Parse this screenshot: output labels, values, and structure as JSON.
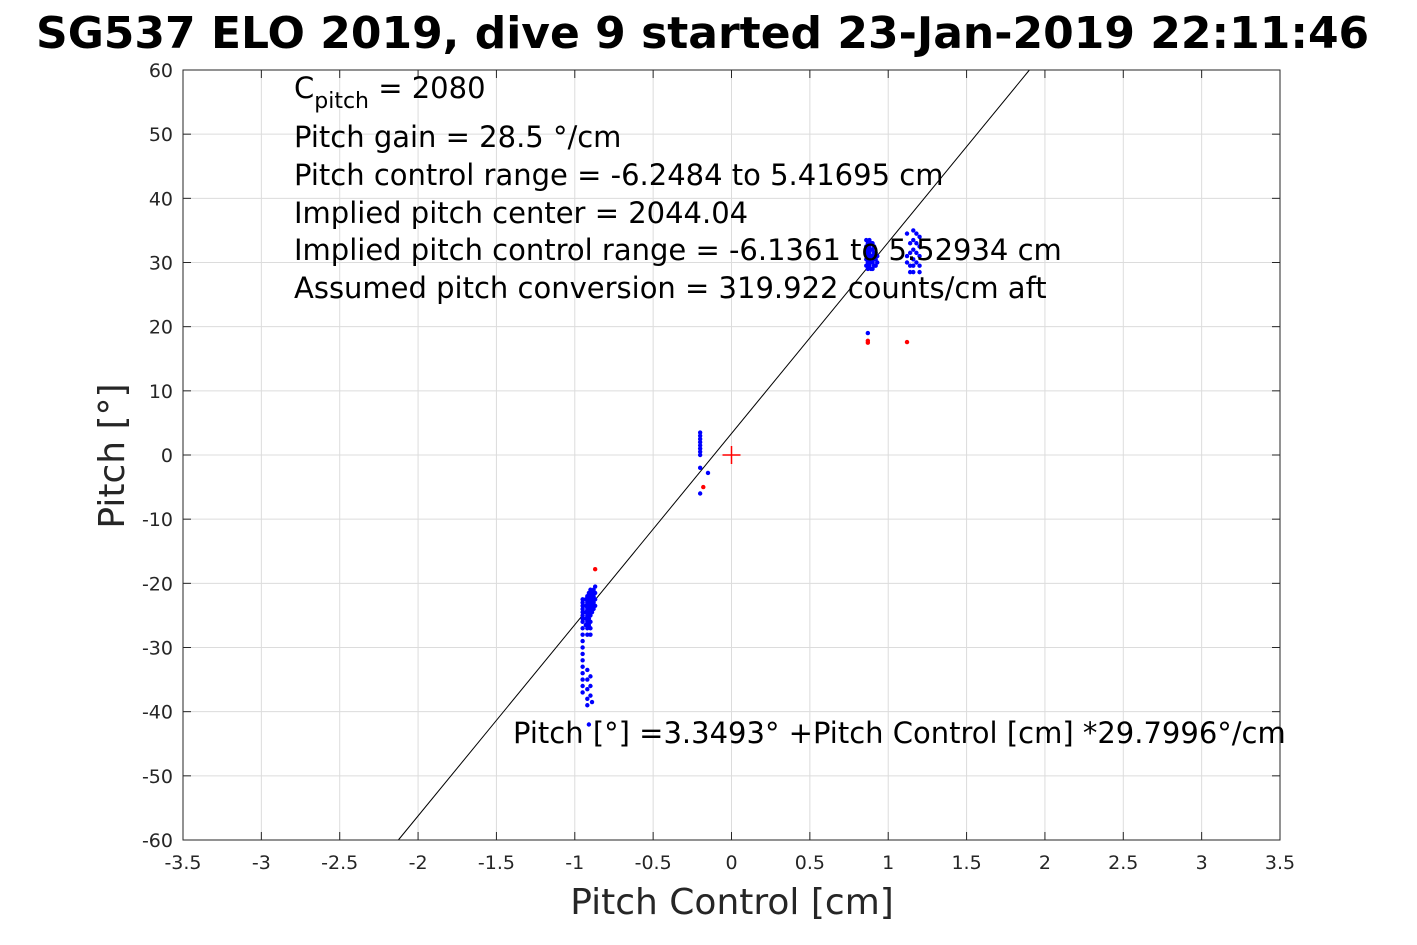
{
  "chart_data": {
    "type": "scatter",
    "title": "SG537 ELO 2019, dive 9 started 23-Jan-2019 22:11:46",
    "xlabel": "Pitch Control [cm]",
    "ylabel": "Pitch [°]",
    "xlim": [
      -3.5,
      3.5
    ],
    "ylim": [
      -60,
      60
    ],
    "grid": true,
    "x_ticks": [
      -3.5,
      -3,
      -2.5,
      -2,
      -1.5,
      -1,
      -0.5,
      0,
      0.5,
      1,
      1.5,
      2,
      2.5,
      3,
      3.5
    ],
    "y_ticks": [
      -60,
      -50,
      -40,
      -30,
      -20,
      -10,
      0,
      10,
      20,
      30,
      40,
      50,
      60
    ],
    "fit_line": {
      "intercept": 3.3493,
      "slope": 29.7996
    },
    "center_marker": {
      "x": 0,
      "y": 0,
      "color": "#ff0000"
    },
    "annotations": {
      "c_pitch_base": "C",
      "c_pitch_sub": "pitch",
      "c_pitch_value": " = 2080",
      "lines": [
        "Pitch gain = 28.5 °/cm",
        "Pitch control range = -6.2484 to 5.41695 cm",
        "Implied pitch center = 2044.04",
        "Implied pitch control range = -6.1361 to 5.52934 cm",
        "Assumed pitch conversion = 319.922 counts/cm aft"
      ],
      "fit_equation": "Pitch [°] =3.3493° +Pitch Control [cm] *29.7996°/cm"
    },
    "series": [
      {
        "color": "#0000ff",
        "points": [
          [
            -0.95,
            -22.5
          ],
          [
            -0.95,
            -23.0
          ],
          [
            -0.95,
            -23.5
          ],
          [
            -0.95,
            -24.0
          ],
          [
            -0.95,
            -24.5
          ],
          [
            -0.95,
            -25.0
          ],
          [
            -0.95,
            -25.5
          ],
          [
            -0.95,
            -26.0
          ],
          [
            -0.95,
            -27.0
          ],
          [
            -0.95,
            -28.0
          ],
          [
            -0.95,
            -29.0
          ],
          [
            -0.95,
            -30.0
          ],
          [
            -0.95,
            -31.0
          ],
          [
            -0.95,
            -32.0
          ],
          [
            -0.95,
            -33.0
          ],
          [
            -0.95,
            -34.0
          ],
          [
            -0.95,
            -35.0
          ],
          [
            -0.95,
            -36.0
          ],
          [
            -0.95,
            -37.0
          ],
          [
            -0.93,
            -22.5
          ],
          [
            -0.93,
            -23.5
          ],
          [
            -0.93,
            -24.5
          ],
          [
            -0.93,
            -25.5
          ],
          [
            -0.93,
            -26.5
          ],
          [
            -0.92,
            -22.0
          ],
          [
            -0.92,
            -23.0
          ],
          [
            -0.92,
            -24.0
          ],
          [
            -0.92,
            -25.0
          ],
          [
            -0.92,
            -26.0
          ],
          [
            -0.92,
            -27.0
          ],
          [
            -0.92,
            -28.0
          ],
          [
            -0.92,
            -33.5
          ],
          [
            -0.92,
            -35.0
          ],
          [
            -0.92,
            -36.5
          ],
          [
            -0.92,
            -38.0
          ],
          [
            -0.92,
            -39.0
          ],
          [
            -0.91,
            -21.5
          ],
          [
            -0.91,
            -22.5
          ],
          [
            -0.91,
            -23.5
          ],
          [
            -0.91,
            -24.5
          ],
          [
            -0.91,
            -25.5
          ],
          [
            -0.91,
            -26.5
          ],
          [
            -0.9,
            -21.0
          ],
          [
            -0.9,
            -22.0
          ],
          [
            -0.9,
            -23.0
          ],
          [
            -0.9,
            -24.0
          ],
          [
            -0.9,
            -25.0
          ],
          [
            -0.9,
            -26.0
          ],
          [
            -0.9,
            -27.0
          ],
          [
            -0.9,
            -28.0
          ],
          [
            -0.9,
            -34.5
          ],
          [
            -0.9,
            -36.0
          ],
          [
            -0.9,
            -37.5
          ],
          [
            -0.89,
            -21.5
          ],
          [
            -0.89,
            -22.5
          ],
          [
            -0.89,
            -23.5
          ],
          [
            -0.89,
            -24.5
          ],
          [
            -0.89,
            -38.5
          ],
          [
            -0.88,
            -21.0
          ],
          [
            -0.88,
            -22.0
          ],
          [
            -0.88,
            -23.0
          ],
          [
            -0.88,
            -24.0
          ],
          [
            -0.87,
            -20.5
          ],
          [
            -0.87,
            -21.5
          ],
          [
            -0.87,
            -22.5
          ],
          [
            -0.87,
            -23.5
          ],
          [
            -0.91,
            -42.0
          ],
          [
            -0.2,
            3.5
          ],
          [
            -0.2,
            3.0
          ],
          [
            -0.2,
            2.5
          ],
          [
            -0.2,
            2.0
          ],
          [
            -0.2,
            1.5
          ],
          [
            -0.2,
            1.0
          ],
          [
            -0.2,
            0.5
          ],
          [
            -0.2,
            0.0
          ],
          [
            -0.2,
            -2.0
          ],
          [
            -0.2,
            -6.0
          ],
          [
            -0.15,
            -2.8
          ],
          [
            0.86,
            33.5
          ],
          [
            0.86,
            32.5
          ],
          [
            0.86,
            31.5
          ],
          [
            0.86,
            30.5
          ],
          [
            0.86,
            29.5
          ],
          [
            0.87,
            33.0
          ],
          [
            0.87,
            32.0
          ],
          [
            0.87,
            31.0
          ],
          [
            0.87,
            30.0
          ],
          [
            0.87,
            29.0
          ],
          [
            0.88,
            33.5
          ],
          [
            0.88,
            32.5
          ],
          [
            0.88,
            31.5
          ],
          [
            0.88,
            30.5
          ],
          [
            0.88,
            29.5
          ],
          [
            0.89,
            33.0
          ],
          [
            0.89,
            32.0
          ],
          [
            0.89,
            31.0
          ],
          [
            0.89,
            30.0
          ],
          [
            0.89,
            29.0
          ],
          [
            0.9,
            33.0
          ],
          [
            0.9,
            32.0
          ],
          [
            0.9,
            31.0
          ],
          [
            0.9,
            30.0
          ],
          [
            0.9,
            29.0
          ],
          [
            0.91,
            32.5
          ],
          [
            0.91,
            31.5
          ],
          [
            0.91,
            30.5
          ],
          [
            0.91,
            29.5
          ],
          [
            0.92,
            31.5
          ],
          [
            0.92,
            30.5
          ],
          [
            0.92,
            29.5
          ],
          [
            0.93,
            31.0
          ],
          [
            0.93,
            30.0
          ],
          [
            0.87,
            19.0
          ],
          [
            1.12,
            34.5
          ],
          [
            1.12,
            31.0
          ],
          [
            1.12,
            30.0
          ],
          [
            1.14,
            33.0
          ],
          [
            1.14,
            31.5
          ],
          [
            1.14,
            29.5
          ],
          [
            1.14,
            28.5
          ],
          [
            1.16,
            35.0
          ],
          [
            1.16,
            33.5
          ],
          [
            1.16,
            32.0
          ],
          [
            1.16,
            30.5
          ],
          [
            1.16,
            29.5
          ],
          [
            1.16,
            28.5
          ],
          [
            1.18,
            34.5
          ],
          [
            1.18,
            33.0
          ],
          [
            1.18,
            31.5
          ],
          [
            1.18,
            30.0
          ],
          [
            1.2,
            34.0
          ],
          [
            1.2,
            32.5
          ],
          [
            1.2,
            31.0
          ],
          [
            1.2,
            29.5
          ],
          [
            1.2,
            28.5
          ]
        ]
      },
      {
        "color": "#ff0000",
        "points": [
          [
            -0.87,
            -17.8
          ],
          [
            -0.18,
            -5.0
          ],
          [
            0.87,
            17.5
          ],
          [
            0.87,
            17.8
          ],
          [
            1.12,
            17.6
          ]
        ]
      }
    ]
  }
}
